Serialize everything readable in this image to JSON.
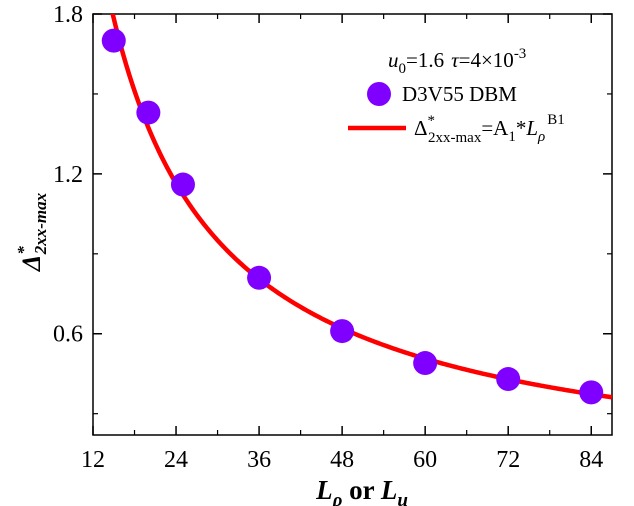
{
  "chart_data": {
    "type": "scatter",
    "annotation": {
      "u_sym": "u",
      "u_sub": "0",
      "u_val": "=1.6",
      "tau_sym": "τ",
      "tau_val": "=4×10",
      "tau_exp": "-3"
    },
    "series": [
      {
        "name": "D3V55 DBM",
        "marker": "circle",
        "color": "#8000ff",
        "x": [
          15,
          20,
          25,
          36,
          48,
          60,
          72,
          84
        ],
        "y": [
          1.7,
          1.43,
          1.16,
          0.81,
          0.61,
          0.49,
          0.43,
          0.38
        ]
      },
      {
        "name": "fit",
        "type": "line",
        "color": "#ff0000",
        "formula_prefix": "Δ",
        "formula_sup": "*",
        "formula_sub": "2xx-max",
        "formula_eq": "=A",
        "formula_a_sub": "1",
        "formula_mult": "*",
        "formula_L": "L",
        "formula_L_sub": "ρ",
        "formula_exp": "B1"
      }
    ],
    "xlabel": {
      "a": "L",
      "a_sub": "ρ",
      "mid": " or ",
      "b": "L",
      "b_sub": "u"
    },
    "ylabel": {
      "base": "Δ",
      "sup": "*",
      "sub": "2xx-max"
    },
    "xlim": [
      12,
      87
    ],
    "ylim": [
      0.22,
      1.8
    ],
    "xticks": [
      12,
      24,
      36,
      48,
      60,
      72,
      84
    ],
    "yticks": [
      "0.6",
      "1.2",
      "1.8"
    ],
    "grid": false,
    "legend_position": "top-right"
  },
  "colors": {
    "marker": "#8000ff",
    "fit_line": "#ff0000",
    "axis": "#000000"
  }
}
